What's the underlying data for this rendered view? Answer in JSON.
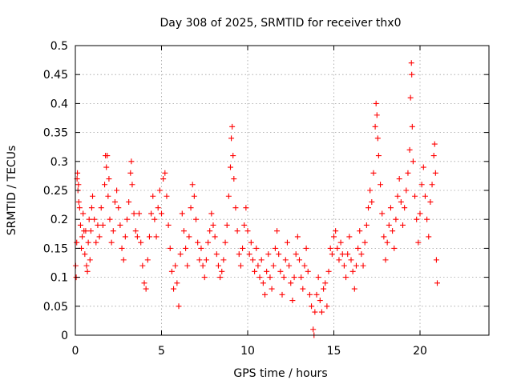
{
  "chart_data": {
    "type": "scatter",
    "title": "Day 308 of 2025, SRMTID for receiver thx0",
    "xlabel": "GPS time / hours",
    "ylabel": "SRMTID / TECUs",
    "xlim": [
      0,
      24
    ],
    "ylim": [
      0,
      0.5
    ],
    "grid": true,
    "marker": "plus",
    "series_color": "#ff0000",
    "x_ticks": [
      {
        "value": 0,
        "label": "0"
      },
      {
        "value": 5,
        "label": "5"
      },
      {
        "value": 10,
        "label": "10"
      },
      {
        "value": 15,
        "label": "15"
      },
      {
        "value": 20,
        "label": "20"
      }
    ],
    "y_ticks": [
      {
        "value": 0,
        "label": "0"
      },
      {
        "value": 0.05,
        "label": "0.05"
      },
      {
        "value": 0.1,
        "label": "0.1"
      },
      {
        "value": 0.15,
        "label": "0.15"
      },
      {
        "value": 0.2,
        "label": "0.2"
      },
      {
        "value": 0.25,
        "label": "0.25"
      },
      {
        "value": 0.3,
        "label": "0.3"
      },
      {
        "value": 0.35,
        "label": "0.35"
      },
      {
        "value": 0.4,
        "label": "0.4"
      },
      {
        "value": 0.45,
        "label": "0.45"
      },
      {
        "value": 0.5,
        "label": "0.5"
      }
    ],
    "points": [
      [
        0.02,
        0.12
      ],
      [
        0.05,
        0.1
      ],
      [
        0.08,
        0.16
      ],
      [
        0.1,
        0.27
      ],
      [
        0.12,
        0.28
      ],
      [
        0.15,
        0.25
      ],
      [
        0.18,
        0.26
      ],
      [
        0.2,
        0.23
      ],
      [
        0.25,
        0.22
      ],
      [
        0.3,
        0.19
      ],
      [
        0.35,
        0.15
      ],
      [
        0.4,
        0.17
      ],
      [
        0.45,
        0.21
      ],
      [
        0.5,
        0.18
      ],
      [
        0.55,
        0.14
      ],
      [
        0.6,
        0.18
      ],
      [
        0.65,
        0.12
      ],
      [
        0.7,
        0.11
      ],
      [
        0.75,
        0.16
      ],
      [
        0.8,
        0.2
      ],
      [
        0.85,
        0.13
      ],
      [
        0.9,
        0.18
      ],
      [
        0.95,
        0.22
      ],
      [
        1.0,
        0.24
      ],
      [
        1.1,
        0.2
      ],
      [
        1.2,
        0.16
      ],
      [
        1.3,
        0.19
      ],
      [
        1.4,
        0.17
      ],
      [
        1.5,
        0.22
      ],
      [
        1.6,
        0.19
      ],
      [
        1.7,
        0.26
      ],
      [
        1.75,
        0.31
      ],
      [
        1.8,
        0.29
      ],
      [
        1.85,
        0.31
      ],
      [
        1.9,
        0.24
      ],
      [
        1.95,
        0.27
      ],
      [
        2.0,
        0.2
      ],
      [
        2.1,
        0.16
      ],
      [
        2.2,
        0.18
      ],
      [
        2.3,
        0.23
      ],
      [
        2.4,
        0.25
      ],
      [
        2.5,
        0.22
      ],
      [
        2.6,
        0.19
      ],
      [
        2.7,
        0.15
      ],
      [
        2.8,
        0.13
      ],
      [
        2.9,
        0.17
      ],
      [
        3.0,
        0.2
      ],
      [
        3.1,
        0.23
      ],
      [
        3.2,
        0.28
      ],
      [
        3.25,
        0.3
      ],
      [
        3.3,
        0.26
      ],
      [
        3.4,
        0.21
      ],
      [
        3.5,
        0.18
      ],
      [
        3.6,
        0.17
      ],
      [
        3.7,
        0.21
      ],
      [
        3.8,
        0.16
      ],
      [
        3.9,
        0.12
      ],
      [
        4.0,
        0.09
      ],
      [
        4.1,
        0.08
      ],
      [
        4.2,
        0.13
      ],
      [
        4.3,
        0.17
      ],
      [
        4.4,
        0.21
      ],
      [
        4.5,
        0.24
      ],
      [
        4.6,
        0.2
      ],
      [
        4.7,
        0.17
      ],
      [
        4.8,
        0.22
      ],
      [
        4.9,
        0.25
      ],
      [
        5.0,
        0.21
      ],
      [
        5.1,
        0.27
      ],
      [
        5.2,
        0.28
      ],
      [
        5.3,
        0.24
      ],
      [
        5.4,
        0.19
      ],
      [
        5.5,
        0.15
      ],
      [
        5.6,
        0.11
      ],
      [
        5.7,
        0.08
      ],
      [
        5.8,
        0.12
      ],
      [
        5.9,
        0.09
      ],
      [
        6.0,
        0.05
      ],
      [
        6.1,
        0.14
      ],
      [
        6.2,
        0.21
      ],
      [
        6.3,
        0.18
      ],
      [
        6.4,
        0.15
      ],
      [
        6.5,
        0.12
      ],
      [
        6.6,
        0.17
      ],
      [
        6.7,
        0.22
      ],
      [
        6.8,
        0.26
      ],
      [
        6.9,
        0.24
      ],
      [
        7.0,
        0.2
      ],
      [
        7.1,
        0.16
      ],
      [
        7.2,
        0.13
      ],
      [
        7.3,
        0.15
      ],
      [
        7.4,
        0.12
      ],
      [
        7.5,
        0.1
      ],
      [
        7.6,
        0.13
      ],
      [
        7.7,
        0.16
      ],
      [
        7.8,
        0.18
      ],
      [
        7.9,
        0.21
      ],
      [
        8.0,
        0.19
      ],
      [
        8.1,
        0.17
      ],
      [
        8.2,
        0.14
      ],
      [
        8.3,
        0.12
      ],
      [
        8.4,
        0.1
      ],
      [
        8.5,
        0.11
      ],
      [
        8.6,
        0.13
      ],
      [
        8.7,
        0.16
      ],
      [
        8.8,
        0.19
      ],
      [
        8.9,
        0.24
      ],
      [
        9.0,
        0.29
      ],
      [
        9.05,
        0.34
      ],
      [
        9.1,
        0.36
      ],
      [
        9.15,
        0.31
      ],
      [
        9.2,
        0.27
      ],
      [
        9.3,
        0.22
      ],
      [
        9.4,
        0.18
      ],
      [
        9.5,
        0.14
      ],
      [
        9.6,
        0.12
      ],
      [
        9.7,
        0.15
      ],
      [
        9.8,
        0.19
      ],
      [
        9.9,
        0.22
      ],
      [
        10.0,
        0.18
      ],
      [
        10.1,
        0.14
      ],
      [
        10.2,
        0.16
      ],
      [
        10.3,
        0.13
      ],
      [
        10.4,
        0.11
      ],
      [
        10.5,
        0.15
      ],
      [
        10.6,
        0.12
      ],
      [
        10.7,
        0.1
      ],
      [
        10.8,
        0.13
      ],
      [
        10.9,
        0.09
      ],
      [
        11.0,
        0.07
      ],
      [
        11.1,
        0.11
      ],
      [
        11.2,
        0.14
      ],
      [
        11.3,
        0.1
      ],
      [
        11.4,
        0.08
      ],
      [
        11.5,
        0.12
      ],
      [
        11.6,
        0.15
      ],
      [
        11.7,
        0.18
      ],
      [
        11.8,
        0.14
      ],
      [
        11.9,
        0.11
      ],
      [
        12.0,
        0.07
      ],
      [
        12.1,
        0.1
      ],
      [
        12.2,
        0.13
      ],
      [
        12.3,
        0.16
      ],
      [
        12.4,
        0.12
      ],
      [
        12.5,
        0.09
      ],
      [
        12.6,
        0.06
      ],
      [
        12.7,
        0.1
      ],
      [
        12.8,
        0.14
      ],
      [
        12.9,
        0.17
      ],
      [
        13.0,
        0.13
      ],
      [
        13.1,
        0.1
      ],
      [
        13.2,
        0.08
      ],
      [
        13.3,
        0.12
      ],
      [
        13.4,
        0.15
      ],
      [
        13.5,
        0.11
      ],
      [
        13.6,
        0.07
      ],
      [
        13.7,
        0.05
      ],
      [
        13.8,
        0.01
      ],
      [
        13.85,
        0.0
      ],
      [
        13.9,
        0.04
      ],
      [
        14.0,
        0.07
      ],
      [
        14.1,
        0.1
      ],
      [
        14.2,
        0.06
      ],
      [
        14.3,
        0.04
      ],
      [
        14.4,
        0.08
      ],
      [
        14.5,
        0.09
      ],
      [
        14.6,
        0.05
      ],
      [
        14.7,
        0.11
      ],
      [
        14.8,
        0.15
      ],
      [
        14.9,
        0.14
      ],
      [
        15.0,
        0.17
      ],
      [
        15.1,
        0.18
      ],
      [
        15.2,
        0.15
      ],
      [
        15.3,
        0.13
      ],
      [
        15.4,
        0.16
      ],
      [
        15.5,
        0.14
      ],
      [
        15.6,
        0.12
      ],
      [
        15.7,
        0.1
      ],
      [
        15.8,
        0.14
      ],
      [
        15.9,
        0.17
      ],
      [
        16.0,
        0.13
      ],
      [
        16.1,
        0.11
      ],
      [
        16.2,
        0.08
      ],
      [
        16.3,
        0.12
      ],
      [
        16.4,
        0.15
      ],
      [
        16.5,
        0.18
      ],
      [
        16.6,
        0.14
      ],
      [
        16.7,
        0.12
      ],
      [
        16.8,
        0.16
      ],
      [
        16.9,
        0.19
      ],
      [
        17.0,
        0.22
      ],
      [
        17.1,
        0.25
      ],
      [
        17.2,
        0.23
      ],
      [
        17.3,
        0.28
      ],
      [
        17.4,
        0.36
      ],
      [
        17.45,
        0.4
      ],
      [
        17.5,
        0.38
      ],
      [
        17.55,
        0.34
      ],
      [
        17.6,
        0.31
      ],
      [
        17.7,
        0.26
      ],
      [
        17.8,
        0.21
      ],
      [
        17.9,
        0.17
      ],
      [
        18.0,
        0.13
      ],
      [
        18.1,
        0.16
      ],
      [
        18.2,
        0.19
      ],
      [
        18.3,
        0.22
      ],
      [
        18.4,
        0.18
      ],
      [
        18.5,
        0.15
      ],
      [
        18.6,
        0.2
      ],
      [
        18.7,
        0.24
      ],
      [
        18.8,
        0.27
      ],
      [
        18.9,
        0.23
      ],
      [
        19.0,
        0.19
      ],
      [
        19.1,
        0.22
      ],
      [
        19.2,
        0.25
      ],
      [
        19.3,
        0.28
      ],
      [
        19.4,
        0.32
      ],
      [
        19.45,
        0.41
      ],
      [
        19.5,
        0.47
      ],
      [
        19.52,
        0.45
      ],
      [
        19.55,
        0.36
      ],
      [
        19.6,
        0.3
      ],
      [
        19.7,
        0.24
      ],
      [
        19.8,
        0.2
      ],
      [
        19.9,
        0.16
      ],
      [
        20.0,
        0.21
      ],
      [
        20.1,
        0.26
      ],
      [
        20.2,
        0.29
      ],
      [
        20.3,
        0.24
      ],
      [
        20.4,
        0.2
      ],
      [
        20.5,
        0.17
      ],
      [
        20.6,
        0.23
      ],
      [
        20.7,
        0.26
      ],
      [
        20.8,
        0.31
      ],
      [
        20.85,
        0.33
      ],
      [
        20.9,
        0.28
      ],
      [
        20.95,
        0.13
      ],
      [
        21.0,
        0.09
      ]
    ]
  }
}
